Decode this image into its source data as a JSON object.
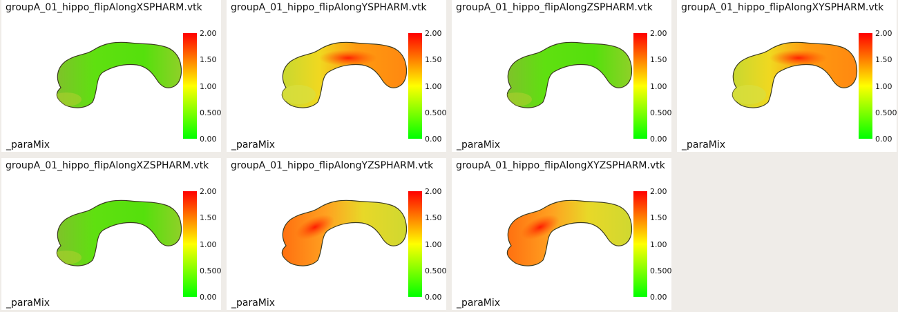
{
  "panels": [
    {
      "title": "groupA_01_hippo_flipAlongXSPHARM.vtk",
      "scalar": "_paraMix",
      "colormap": "mostly-green",
      "icon": "hippocampus-mesh-icon"
    },
    {
      "title": "groupA_01_hippo_flipAlongYSPHARM.vtk",
      "scalar": "_paraMix",
      "colormap": "red-ridge-top",
      "icon": "hippocampus-mesh-icon"
    },
    {
      "title": "groupA_01_hippo_flipAlongZSPHARM.vtk",
      "scalar": "_paraMix",
      "colormap": "mostly-green",
      "icon": "hippocampus-mesh-icon"
    },
    {
      "title": "groupA_01_hippo_flipAlongXYSPHARM.vtk",
      "scalar": "_paraMix",
      "colormap": "red-ridge-top",
      "icon": "hippocampus-mesh-icon"
    },
    {
      "title": "groupA_01_hippo_flipAlongXZSPHARM.vtk",
      "scalar": "_paraMix",
      "colormap": "mostly-green",
      "icon": "hippocampus-mesh-icon"
    },
    {
      "title": "groupA_01_hippo_flipAlongYZSPHARM.vtk",
      "scalar": "_paraMix",
      "colormap": "red-left-head",
      "icon": "hippocampus-mesh-icon"
    },
    {
      "title": "groupA_01_hippo_flipAlongXYZSPHARM.vtk",
      "scalar": "_paraMix",
      "colormap": "red-left-head",
      "icon": "hippocampus-mesh-icon"
    }
  ],
  "colorbar": {
    "ticks": [
      "2.00",
      "1.50",
      "1.00",
      "0.500",
      "0.00"
    ],
    "range": [
      0,
      2
    ],
    "colors": [
      "#ff0000",
      "#ff8000",
      "#ffff00",
      "#80ff00",
      "#00ff00"
    ]
  }
}
